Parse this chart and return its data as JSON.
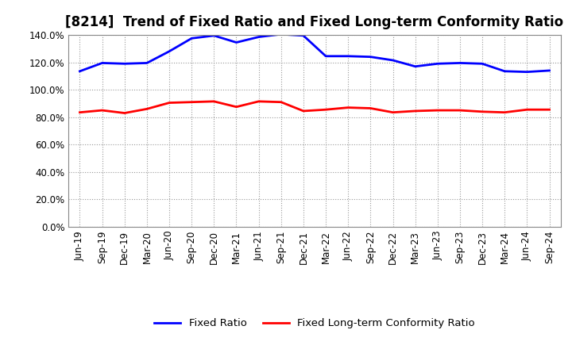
{
  "title": "[8214]  Trend of Fixed Ratio and Fixed Long-term Conformity Ratio",
  "x_labels": [
    "Jun-19",
    "Sep-19",
    "Dec-19",
    "Mar-20",
    "Jun-20",
    "Sep-20",
    "Dec-20",
    "Mar-21",
    "Jun-21",
    "Sep-21",
    "Dec-21",
    "Mar-22",
    "Jun-22",
    "Sep-22",
    "Dec-22",
    "Mar-23",
    "Jun-23",
    "Sep-23",
    "Dec-23",
    "Mar-24",
    "Jun-24",
    "Sep-24"
  ],
  "fixed_ratio": [
    113.5,
    119.5,
    119.0,
    119.5,
    128.0,
    137.5,
    139.5,
    134.5,
    138.5,
    140.5,
    139.5,
    124.5,
    124.5,
    124.0,
    121.5,
    117.0,
    119.0,
    119.5,
    119.0,
    113.5,
    113.0,
    114.0
  ],
  "fixed_lt_ratio": [
    83.5,
    85.0,
    83.0,
    86.0,
    90.5,
    91.0,
    91.5,
    87.5,
    91.5,
    91.0,
    84.5,
    85.5,
    87.0,
    86.5,
    83.5,
    84.5,
    85.0,
    85.0,
    84.0,
    83.5,
    85.5,
    85.5
  ],
  "fixed_ratio_color": "#0000ff",
  "fixed_lt_ratio_color": "#ff0000",
  "ylim": [
    0,
    140
  ],
  "yticks": [
    0,
    20,
    40,
    60,
    80,
    100,
    120,
    140
  ],
  "background_color": "#ffffff",
  "plot_bg_color": "#ffffff",
  "grid_color": "#999999",
  "legend_fixed": "Fixed Ratio",
  "legend_fixed_lt": "Fixed Long-term Conformity Ratio",
  "title_fontsize": 12,
  "tick_fontsize": 8.5,
  "legend_fontsize": 9.5
}
